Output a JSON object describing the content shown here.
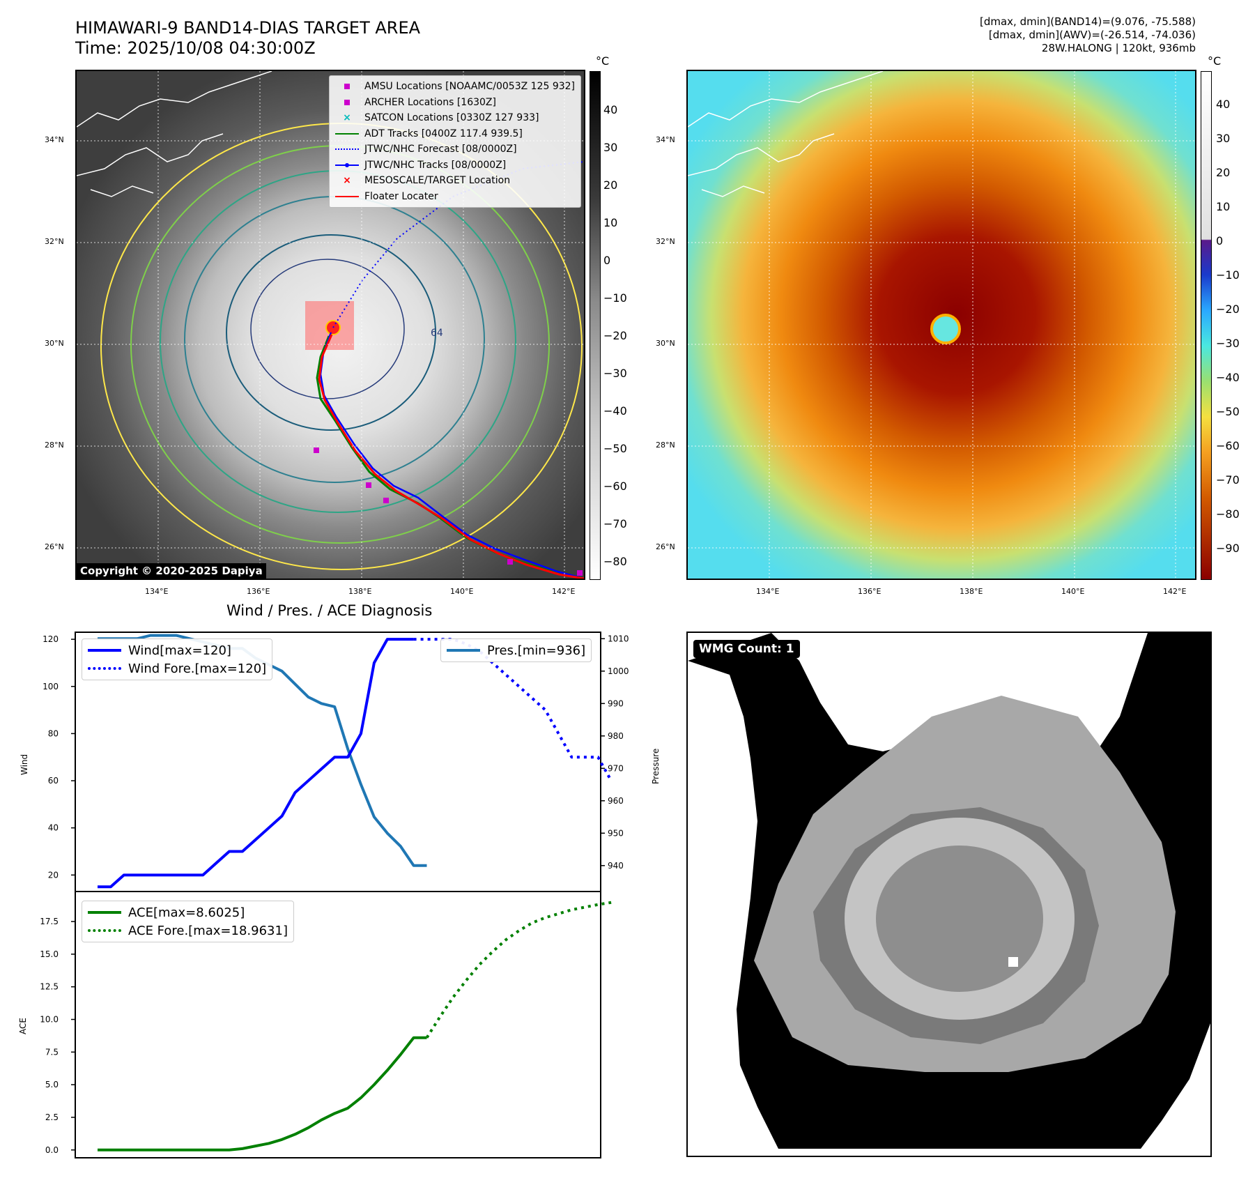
{
  "header": {
    "title_line1": "HIMAWARI-9 BAND14-DIAS TARGET AREA",
    "title_line2": "Time: 2025/10/08 04:30:00Z",
    "info_line1": "[dmax, dmin](BAND14)=(9.076, -75.588)",
    "info_line2": "[dmax, dmin](AWV)=(-26.514, -74.036)",
    "info_line3": "28W.HALONG | 120kt, 936mb"
  },
  "map": {
    "lat_labels": [
      "34°N",
      "32°N",
      "30°N",
      "28°N",
      "26°N"
    ],
    "lon_labels": [
      "134°E",
      "136°E",
      "138°E",
      "140°E",
      "142°E"
    ],
    "copyright": "Copyright © 2020-2025 Dapiya",
    "legend": [
      {
        "label": "AMSU Locations [NOAAMC/0053Z 125 932]",
        "symbol": "square",
        "color": "#cc00cc"
      },
      {
        "label": "ARCHER Locations [1630Z]",
        "symbol": "square",
        "color": "#cc00cc"
      },
      {
        "label": "SATCON Locations [0330Z 127 933]",
        "symbol": "x",
        "color": "#00bbbb"
      },
      {
        "label": "ADT Tracks [0400Z 117.4 939.5]",
        "symbol": "line",
        "color": "#008000"
      },
      {
        "label": "JTWC/NHC Forecast [08/0000Z]",
        "symbol": "dotted",
        "color": "#0000ff"
      },
      {
        "label": "JTWC/NHC Tracks [08/0000Z]",
        "symbol": "dotline",
        "color": "#0000ff"
      },
      {
        "label": "MESOSCALE/TARGET Location",
        "symbol": "x",
        "color": "#ff0000"
      },
      {
        "label": "Floater Locater",
        "symbol": "line",
        "color": "#ff0000"
      }
    ],
    "contour_label": "64",
    "colorbar_unit": "°C",
    "colorbar_ticks": [
      "40",
      "30",
      "20",
      "10",
      "0",
      "−10",
      "−20",
      "−30",
      "−40",
      "−50",
      "−60",
      "−70",
      "−80"
    ]
  },
  "awv_map": {
    "colorbar_unit": "°C",
    "colorbar_ticks": [
      "40",
      "30",
      "20",
      "10",
      "0",
      "−10",
      "−20",
      "−30",
      "−40",
      "−50",
      "−60",
      "−70",
      "−80",
      "−90"
    ]
  },
  "colors": {
    "wind": "#0000ff",
    "pressure": "#1f77b4",
    "ace": "#008000",
    "track": "#ff0000",
    "ocean_cyan": "#55ddee",
    "eye_red": "#880000"
  },
  "chart_data": [
    {
      "type": "line",
      "title": "Wind / Pres. / ACE Diagnosis",
      "ylabel": "Wind",
      "y2label": "Pressure",
      "ylim": [
        13,
        123
      ],
      "y2lim": [
        932,
        1012
      ],
      "yticks": [
        20,
        40,
        60,
        80,
        100,
        120
      ],
      "y2ticks": [
        940,
        950,
        960,
        970,
        980,
        990,
        1000,
        1010
      ],
      "series": [
        {
          "name": "Wind[max=120]",
          "axis": "left",
          "style": "solid",
          "x": [
            0,
            1,
            2,
            3,
            4,
            5,
            6,
            7,
            8,
            9,
            10,
            11,
            12,
            13,
            14,
            15,
            16,
            17,
            18,
            19,
            20,
            21,
            22,
            23,
            24
          ],
          "values": [
            15,
            15,
            20,
            20,
            20,
            20,
            20,
            20,
            20,
            25,
            30,
            30,
            35,
            40,
            45,
            55,
            60,
            65,
            70,
            70,
            80,
            110,
            120,
            120,
            120
          ]
        },
        {
          "name": "Wind Fore.[max=120]",
          "axis": "left",
          "style": "dotted",
          "x": [
            24,
            25,
            26,
            27,
            28,
            29,
            30,
            31,
            32,
            33,
            34,
            35,
            36,
            37,
            38,
            39
          ],
          "values": [
            120,
            120,
            120,
            120,
            118,
            115,
            110,
            105,
            100,
            95,
            90,
            80,
            70,
            70,
            70,
            60
          ]
        },
        {
          "name": "Pres.[min=936]",
          "axis": "right",
          "style": "solid",
          "x": [
            0,
            1,
            2,
            3,
            4,
            5,
            6,
            7,
            8,
            9,
            10,
            11,
            12,
            13,
            14,
            15,
            16,
            17,
            18,
            19,
            20,
            21,
            22,
            23,
            24,
            25
          ],
          "values": [
            1010,
            1010,
            1010,
            1010,
            1011,
            1011,
            1011,
            1010,
            1009,
            1008,
            1007,
            1007,
            1004,
            1002,
            1000,
            996,
            992,
            990,
            989,
            976,
            965,
            955,
            950,
            946,
            940,
            940
          ]
        }
      ]
    },
    {
      "type": "line",
      "ylabel": "ACE",
      "ylim": [
        -0.6,
        19.8
      ],
      "yticks": [
        0.0,
        2.5,
        5.0,
        7.5,
        10.0,
        12.5,
        15.0,
        17.5
      ],
      "ytick_labels": [
        "0.0",
        "2.5",
        "5.0",
        "7.5",
        "10.0",
        "12.5",
        "15.0",
        "17.5"
      ],
      "series": [
        {
          "name": "ACE[max=8.6025]",
          "style": "solid",
          "x": [
            0,
            1,
            2,
            3,
            4,
            5,
            6,
            7,
            8,
            9,
            10,
            11,
            12,
            13,
            14,
            15,
            16,
            17,
            18,
            19,
            20,
            21,
            22,
            23,
            24,
            25
          ],
          "values": [
            0,
            0,
            0,
            0,
            0,
            0,
            0,
            0,
            0,
            0,
            0,
            0.1,
            0.3,
            0.5,
            0.8,
            1.2,
            1.7,
            2.3,
            2.8,
            3.2,
            4.0,
            5.0,
            6.1,
            7.3,
            8.6,
            8.6
          ]
        },
        {
          "name": "ACE Fore.[max=18.9631]",
          "style": "dotted",
          "x": [
            25,
            26,
            27,
            28,
            29,
            30,
            31,
            32,
            33,
            34,
            35,
            36,
            37,
            38,
            39
          ],
          "values": [
            8.6,
            10.2,
            11.7,
            13.0,
            14.2,
            15.2,
            16.1,
            16.8,
            17.4,
            17.8,
            18.1,
            18.4,
            18.6,
            18.8,
            18.96
          ]
        }
      ]
    }
  ],
  "wmg": {
    "label": "WMG Count: 1"
  }
}
